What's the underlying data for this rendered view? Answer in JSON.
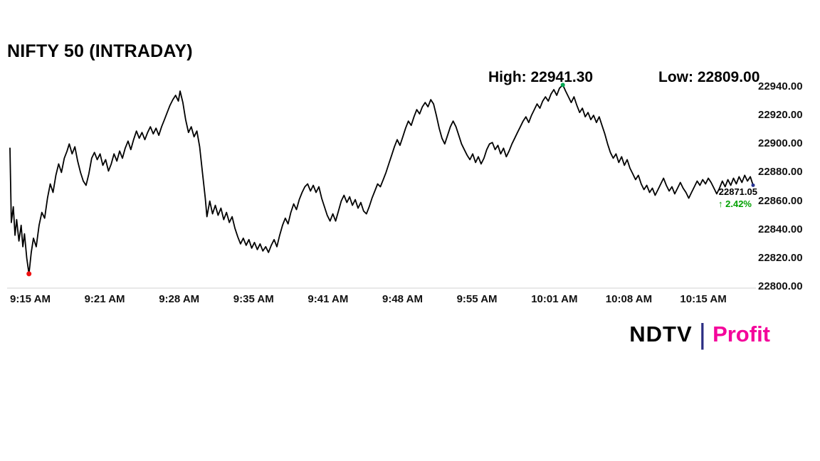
{
  "title": "NIFTY 50 (INTRADAY)",
  "annotations": {
    "high": "High: 22941.30",
    "low": "Low: 22809.00"
  },
  "last": {
    "price": "22871.05",
    "arrow": "↑",
    "change": "2.42%"
  },
  "logo": {
    "ndtv": "NDTV",
    "separator": "|",
    "profit": "Profit"
  },
  "colors": {
    "line": "#000000",
    "low_marker": "#ee1111",
    "high_marker": "#00a651",
    "end_marker": "#283593",
    "change_text": "#00a000",
    "profit_text": "#f4059b",
    "separator": "#2b2e83",
    "axis_text": "#111111",
    "baseline": "#d0d0d0"
  },
  "chart_data": {
    "type": "line",
    "title": "NIFTY 50 (INTRADAY)",
    "xlabel": "",
    "ylabel": "",
    "x_unit": "minutes since 09:15 AM",
    "grid": false,
    "legend": false,
    "ylim": [
      22800,
      22940
    ],
    "xlim_minutes": [
      0,
      66.4
    ],
    "high": 22941.3,
    "low": 22809.0,
    "last_price": 22871.05,
    "change_percent": 2.42,
    "x_tick_labels": [
      "9:15 AM",
      "9:21 AM",
      "9:28 AM",
      "9:35 AM",
      "9:41 AM",
      "9:48 AM",
      "9:55 AM",
      "10:01 AM",
      "10:08 AM",
      "10:15 AM"
    ],
    "y_tick_labels": [
      "22940.00",
      "22920.00",
      "22900.00",
      "22880.00",
      "22860.00",
      "22840.00",
      "22820.00",
      "22800.00"
    ],
    "markers": [
      {
        "name": "low",
        "t": 1.7,
        "price": 22809.0,
        "color": "#ee1111",
        "r": 3.5
      },
      {
        "name": "high",
        "t": 49.4,
        "price": 22941.3,
        "color": "#00a651",
        "r": 3
      },
      {
        "name": "last",
        "t": 66.4,
        "price": 22871.05,
        "color": "#283593",
        "r": 2.5
      }
    ],
    "points": [
      [
        0,
        22897
      ],
      [
        0.12,
        22845
      ],
      [
        0.3,
        22856
      ],
      [
        0.45,
        22836
      ],
      [
        0.6,
        22847
      ],
      [
        0.8,
        22832
      ],
      [
        1,
        22843
      ],
      [
        1.15,
        22828
      ],
      [
        1.3,
        22837
      ],
      [
        1.5,
        22820
      ],
      [
        1.7,
        22809
      ],
      [
        1.9,
        22824
      ],
      [
        2.1,
        22834
      ],
      [
        2.35,
        22828
      ],
      [
        2.6,
        22843
      ],
      [
        2.85,
        22852
      ],
      [
        3.1,
        22848
      ],
      [
        3.35,
        22862
      ],
      [
        3.6,
        22872
      ],
      [
        3.85,
        22866
      ],
      [
        4.1,
        22878
      ],
      [
        4.35,
        22886
      ],
      [
        4.6,
        22880
      ],
      [
        4.85,
        22890
      ],
      [
        5.1,
        22895
      ],
      [
        5.3,
        22900
      ],
      [
        5.55,
        22893
      ],
      [
        5.8,
        22898
      ],
      [
        6.05,
        22888
      ],
      [
        6.3,
        22880
      ],
      [
        6.55,
        22874
      ],
      [
        6.8,
        22871
      ],
      [
        7.05,
        22879
      ],
      [
        7.3,
        22890
      ],
      [
        7.55,
        22894
      ],
      [
        7.8,
        22889
      ],
      [
        8.05,
        22893
      ],
      [
        8.3,
        22885
      ],
      [
        8.55,
        22889
      ],
      [
        8.8,
        22881
      ],
      [
        9.05,
        22886
      ],
      [
        9.3,
        22893
      ],
      [
        9.55,
        22888
      ],
      [
        9.8,
        22895
      ],
      [
        10.05,
        22890
      ],
      [
        10.3,
        22897
      ],
      [
        10.55,
        22902
      ],
      [
        10.8,
        22896
      ],
      [
        11.05,
        22903
      ],
      [
        11.3,
        22909
      ],
      [
        11.55,
        22904
      ],
      [
        11.8,
        22908
      ],
      [
        12.05,
        22903
      ],
      [
        12.3,
        22908
      ],
      [
        12.55,
        22912
      ],
      [
        12.8,
        22907
      ],
      [
        13.05,
        22911
      ],
      [
        13.3,
        22906
      ],
      [
        13.55,
        22912
      ],
      [
        13.8,
        22917
      ],
      [
        14.05,
        22922
      ],
      [
        14.3,
        22927
      ],
      [
        14.55,
        22931
      ],
      [
        14.8,
        22934
      ],
      [
        15.05,
        22930
      ],
      [
        15.2,
        22937
      ],
      [
        15.45,
        22929
      ],
      [
        15.7,
        22917
      ],
      [
        15.95,
        22908
      ],
      [
        16.2,
        22912
      ],
      [
        16.45,
        22905
      ],
      [
        16.7,
        22909
      ],
      [
        16.95,
        22898
      ],
      [
        17.2,
        22880
      ],
      [
        17.45,
        22862
      ],
      [
        17.6,
        22849
      ],
      [
        17.85,
        22860
      ],
      [
        18.1,
        22851
      ],
      [
        18.35,
        22857
      ],
      [
        18.6,
        22850
      ],
      [
        18.85,
        22855
      ],
      [
        19.1,
        22847
      ],
      [
        19.35,
        22852
      ],
      [
        19.6,
        22845
      ],
      [
        19.85,
        22849
      ],
      [
        20.1,
        22841
      ],
      [
        20.35,
        22835
      ],
      [
        20.6,
        22830
      ],
      [
        20.85,
        22834
      ],
      [
        21.1,
        22829
      ],
      [
        21.35,
        22833
      ],
      [
        21.6,
        22827
      ],
      [
        21.85,
        22831
      ],
      [
        22.1,
        22826
      ],
      [
        22.35,
        22830
      ],
      [
        22.6,
        22825
      ],
      [
        22.85,
        22828
      ],
      [
        23.1,
        22824
      ],
      [
        23.35,
        22829
      ],
      [
        23.6,
        22833
      ],
      [
        23.85,
        22828
      ],
      [
        24.1,
        22836
      ],
      [
        24.35,
        22843
      ],
      [
        24.6,
        22848
      ],
      [
        24.85,
        22844
      ],
      [
        25.1,
        22852
      ],
      [
        25.35,
        22858
      ],
      [
        25.6,
        22854
      ],
      [
        25.85,
        22861
      ],
      [
        26.1,
        22866
      ],
      [
        26.35,
        22870
      ],
      [
        26.6,
        22872
      ],
      [
        26.85,
        22867
      ],
      [
        27.1,
        22871
      ],
      [
        27.35,
        22866
      ],
      [
        27.6,
        22870
      ],
      [
        27.85,
        22862
      ],
      [
        28.1,
        22856
      ],
      [
        28.35,
        22850
      ],
      [
        28.6,
        22846
      ],
      [
        28.85,
        22851
      ],
      [
        29.1,
        22846
      ],
      [
        29.35,
        22853
      ],
      [
        29.6,
        22860
      ],
      [
        29.85,
        22864
      ],
      [
        30.1,
        22859
      ],
      [
        30.35,
        22863
      ],
      [
        30.6,
        22857
      ],
      [
        30.85,
        22861
      ],
      [
        31.1,
        22855
      ],
      [
        31.35,
        22859
      ],
      [
        31.6,
        22853
      ],
      [
        31.85,
        22851
      ],
      [
        32.1,
        22856
      ],
      [
        32.35,
        22862
      ],
      [
        32.6,
        22867
      ],
      [
        32.85,
        22872
      ],
      [
        33.1,
        22870
      ],
      [
        33.35,
        22875
      ],
      [
        33.6,
        22880
      ],
      [
        33.85,
        22886
      ],
      [
        34.1,
        22892
      ],
      [
        34.35,
        22898
      ],
      [
        34.6,
        22903
      ],
      [
        34.85,
        22899
      ],
      [
        35.1,
        22905
      ],
      [
        35.35,
        22911
      ],
      [
        35.6,
        22916
      ],
      [
        35.85,
        22913
      ],
      [
        36.1,
        22919
      ],
      [
        36.35,
        22924
      ],
      [
        36.6,
        22921
      ],
      [
        36.85,
        22926
      ],
      [
        37.1,
        22929
      ],
      [
        37.35,
        22926
      ],
      [
        37.6,
        22931
      ],
      [
        37.85,
        22928
      ],
      [
        38.1,
        22920
      ],
      [
        38.35,
        22911
      ],
      [
        38.6,
        22904
      ],
      [
        38.85,
        22900
      ],
      [
        39.1,
        22906
      ],
      [
        39.35,
        22912
      ],
      [
        39.6,
        22916
      ],
      [
        39.85,
        22912
      ],
      [
        40.1,
        22906
      ],
      [
        40.35,
        22900
      ],
      [
        40.6,
        22896
      ],
      [
        40.85,
        22892
      ],
      [
        41.1,
        22889
      ],
      [
        41.35,
        22893
      ],
      [
        41.6,
        22887
      ],
      [
        41.85,
        22891
      ],
      [
        42.1,
        22886
      ],
      [
        42.35,
        22890
      ],
      [
        42.6,
        22896
      ],
      [
        42.85,
        22900
      ],
      [
        43.1,
        22901
      ],
      [
        43.35,
        22896
      ],
      [
        43.6,
        22899
      ],
      [
        43.85,
        22893
      ],
      [
        44.1,
        22897
      ],
      [
        44.35,
        22891
      ],
      [
        44.6,
        22895
      ],
      [
        44.85,
        22900
      ],
      [
        45.1,
        22904
      ],
      [
        45.35,
        22908
      ],
      [
        45.6,
        22912
      ],
      [
        45.85,
        22916
      ],
      [
        46.1,
        22919
      ],
      [
        46.35,
        22915
      ],
      [
        46.6,
        22920
      ],
      [
        46.85,
        22924
      ],
      [
        47.1,
        22928
      ],
      [
        47.35,
        22925
      ],
      [
        47.6,
        22930
      ],
      [
        47.85,
        22933
      ],
      [
        48.1,
        22930
      ],
      [
        48.35,
        22935
      ],
      [
        48.6,
        22938
      ],
      [
        48.85,
        22934
      ],
      [
        49.1,
        22939
      ],
      [
        49.4,
        22941.3
      ],
      [
        49.65,
        22937
      ],
      [
        49.9,
        22933
      ],
      [
        50.15,
        22929
      ],
      [
        50.4,
        22933
      ],
      [
        50.65,
        22927
      ],
      [
        50.9,
        22922
      ],
      [
        51.15,
        22925
      ],
      [
        51.4,
        22919
      ],
      [
        51.65,
        22922
      ],
      [
        51.9,
        22917
      ],
      [
        52.15,
        22920
      ],
      [
        52.4,
        22915
      ],
      [
        52.65,
        22919
      ],
      [
        52.9,
        22913
      ],
      [
        53.15,
        22907
      ],
      [
        53.4,
        22900
      ],
      [
        53.65,
        22894
      ],
      [
        53.9,
        22890
      ],
      [
        54.15,
        22893
      ],
      [
        54.4,
        22887
      ],
      [
        54.65,
        22891
      ],
      [
        54.9,
        22885
      ],
      [
        55.15,
        22889
      ],
      [
        55.4,
        22883
      ],
      [
        55.65,
        22879
      ],
      [
        55.9,
        22875
      ],
      [
        56.15,
        22878
      ],
      [
        56.4,
        22872
      ],
      [
        56.65,
        22868
      ],
      [
        56.9,
        22871
      ],
      [
        57.15,
        22866
      ],
      [
        57.4,
        22869
      ],
      [
        57.65,
        22864
      ],
      [
        57.9,
        22868
      ],
      [
        58.15,
        22872
      ],
      [
        58.4,
        22876
      ],
      [
        58.65,
        22871
      ],
      [
        58.9,
        22867
      ],
      [
        59.15,
        22870
      ],
      [
        59.4,
        22865
      ],
      [
        59.65,
        22869
      ],
      [
        59.9,
        22873
      ],
      [
        60.15,
        22869
      ],
      [
        60.4,
        22866
      ],
      [
        60.65,
        22862
      ],
      [
        60.9,
        22866
      ],
      [
        61.15,
        22870
      ],
      [
        61.4,
        22874
      ],
      [
        61.65,
        22871
      ],
      [
        61.9,
        22875
      ],
      [
        62.15,
        22872
      ],
      [
        62.4,
        22876
      ],
      [
        62.65,
        22873
      ],
      [
        62.9,
        22869
      ],
      [
        63.15,
        22865
      ],
      [
        63.4,
        22869
      ],
      [
        63.65,
        22874
      ],
      [
        63.9,
        22870
      ],
      [
        64.15,
        22875
      ],
      [
        64.4,
        22871
      ],
      [
        64.65,
        22876
      ],
      [
        64.9,
        22872
      ],
      [
        65.15,
        22877
      ],
      [
        65.4,
        22873
      ],
      [
        65.65,
        22878
      ],
      [
        65.9,
        22874
      ],
      [
        66.15,
        22877
      ],
      [
        66.4,
        22871.05
      ]
    ]
  }
}
